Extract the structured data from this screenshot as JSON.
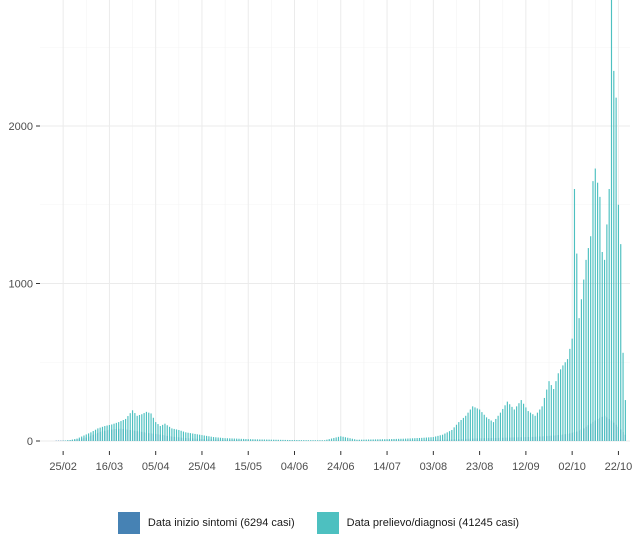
{
  "chart_data": {
    "type": "bar",
    "xlabel": "",
    "ylabel": "",
    "ylim": [
      0,
      2800
    ],
    "y_ticks": [
      0,
      1000,
      2000
    ],
    "x_range": [
      "2020-02-15",
      "2020-10-27"
    ],
    "x_tick_labels": [
      "25/02",
      "16/03",
      "05/04",
      "25/04",
      "15/05",
      "04/06",
      "24/06",
      "14/07",
      "03/08",
      "23/08",
      "12/09",
      "02/10",
      "22/10"
    ],
    "x_tick_dates": [
      "2020-02-25",
      "2020-03-16",
      "2020-04-05",
      "2020-04-25",
      "2020-05-15",
      "2020-06-04",
      "2020-06-24",
      "2020-07-14",
      "2020-08-03",
      "2020-08-23",
      "2020-09-12",
      "2020-10-02",
      "2020-10-22"
    ],
    "grid": true,
    "legend_position": "bottom",
    "series": [
      {
        "name": "Data inizio sintomi (6294 casi)",
        "color": "#4682b4",
        "points": [
          [
            "2020-02-22",
            2
          ],
          [
            "2020-02-26",
            3
          ],
          [
            "2020-02-29",
            6
          ],
          [
            "2020-03-03",
            12
          ],
          [
            "2020-03-06",
            22
          ],
          [
            "2020-03-09",
            40
          ],
          [
            "2020-03-12",
            58
          ],
          [
            "2020-03-15",
            68
          ],
          [
            "2020-03-18",
            75
          ],
          [
            "2020-03-21",
            78
          ],
          [
            "2020-03-24",
            72
          ],
          [
            "2020-03-27",
            65
          ],
          [
            "2020-03-30",
            58
          ],
          [
            "2020-04-02",
            50
          ],
          [
            "2020-04-05",
            45
          ],
          [
            "2020-04-08",
            38
          ],
          [
            "2020-04-11",
            30
          ],
          [
            "2020-04-14",
            25
          ],
          [
            "2020-04-17",
            20
          ],
          [
            "2020-04-20",
            17
          ],
          [
            "2020-04-23",
            14
          ],
          [
            "2020-04-26",
            12
          ],
          [
            "2020-04-29",
            10
          ],
          [
            "2020-05-03",
            8
          ],
          [
            "2020-05-08",
            7
          ],
          [
            "2020-05-13",
            5
          ],
          [
            "2020-05-20",
            4
          ],
          [
            "2020-05-28",
            3
          ],
          [
            "2020-06-05",
            3
          ],
          [
            "2020-06-15",
            2
          ],
          [
            "2020-06-25",
            2
          ],
          [
            "2020-07-05",
            3
          ],
          [
            "2020-07-15",
            4
          ],
          [
            "2020-07-25",
            5
          ],
          [
            "2020-08-01",
            6
          ],
          [
            "2020-08-06",
            8
          ],
          [
            "2020-08-11",
            10
          ],
          [
            "2020-08-16",
            13
          ],
          [
            "2020-08-21",
            16
          ],
          [
            "2020-08-26",
            18
          ],
          [
            "2020-08-31",
            20
          ],
          [
            "2020-09-05",
            22
          ],
          [
            "2020-09-10",
            24
          ],
          [
            "2020-09-15",
            26
          ],
          [
            "2020-09-20",
            30
          ],
          [
            "2020-09-25",
            36
          ],
          [
            "2020-09-30",
            45
          ],
          [
            "2020-10-04",
            60
          ],
          [
            "2020-10-07",
            80
          ],
          [
            "2020-10-10",
            110
          ],
          [
            "2020-10-13",
            140
          ],
          [
            "2020-10-16",
            160
          ],
          [
            "2020-10-19",
            130
          ],
          [
            "2020-10-22",
            90
          ],
          [
            "2020-10-25",
            40
          ]
        ]
      },
      {
        "name": "Data prelievo/diagnosi (41245 casi)",
        "color": "#4dc0c0",
        "points": [
          [
            "2020-02-25",
            2
          ],
          [
            "2020-02-28",
            6
          ],
          [
            "2020-03-02",
            15
          ],
          [
            "2020-03-05",
            35
          ],
          [
            "2020-03-08",
            55
          ],
          [
            "2020-03-11",
            80
          ],
          [
            "2020-03-14",
            95
          ],
          [
            "2020-03-17",
            105
          ],
          [
            "2020-03-20",
            120
          ],
          [
            "2020-03-23",
            140
          ],
          [
            "2020-03-26",
            195
          ],
          [
            "2020-03-28",
            160
          ],
          [
            "2020-03-30",
            170
          ],
          [
            "2020-04-01",
            185
          ],
          [
            "2020-04-03",
            175
          ],
          [
            "2020-04-05",
            120
          ],
          [
            "2020-04-07",
            95
          ],
          [
            "2020-04-09",
            110
          ],
          [
            "2020-04-12",
            80
          ],
          [
            "2020-04-15",
            70
          ],
          [
            "2020-04-18",
            55
          ],
          [
            "2020-04-22",
            45
          ],
          [
            "2020-04-26",
            35
          ],
          [
            "2020-04-30",
            25
          ],
          [
            "2020-05-05",
            18
          ],
          [
            "2020-05-10",
            15
          ],
          [
            "2020-05-15",
            12
          ],
          [
            "2020-05-20",
            10
          ],
          [
            "2020-05-27",
            8
          ],
          [
            "2020-06-03",
            6
          ],
          [
            "2020-06-10",
            5
          ],
          [
            "2020-06-17",
            5
          ],
          [
            "2020-06-24",
            30
          ],
          [
            "2020-07-01",
            8
          ],
          [
            "2020-07-08",
            10
          ],
          [
            "2020-07-15",
            12
          ],
          [
            "2020-07-22",
            15
          ],
          [
            "2020-07-29",
            20
          ],
          [
            "2020-08-03",
            25
          ],
          [
            "2020-08-07",
            40
          ],
          [
            "2020-08-11",
            70
          ],
          [
            "2020-08-14",
            120
          ],
          [
            "2020-08-17",
            160
          ],
          [
            "2020-08-20",
            220
          ],
          [
            "2020-08-23",
            200
          ],
          [
            "2020-08-26",
            150
          ],
          [
            "2020-08-29",
            120
          ],
          [
            "2020-09-01",
            180
          ],
          [
            "2020-09-04",
            250
          ],
          [
            "2020-09-07",
            200
          ],
          [
            "2020-09-10",
            260
          ],
          [
            "2020-09-13",
            190
          ],
          [
            "2020-09-16",
            160
          ],
          [
            "2020-09-19",
            220
          ],
          [
            "2020-09-22",
            380
          ],
          [
            "2020-09-24",
            330
          ],
          [
            "2020-09-26",
            430
          ],
          [
            "2020-09-28",
            480
          ],
          [
            "2020-09-30",
            520
          ],
          [
            "2020-10-02",
            650
          ],
          [
            "2020-10-03",
            1600
          ],
          [
            "2020-10-05",
            780
          ],
          [
            "2020-10-06",
            900
          ],
          [
            "2020-10-08",
            1150
          ],
          [
            "2020-10-10",
            1300
          ],
          [
            "2020-10-11",
            1650
          ],
          [
            "2020-10-12",
            1730
          ],
          [
            "2020-10-14",
            1550
          ],
          [
            "2020-10-15",
            1200
          ],
          [
            "2020-10-16",
            1150
          ],
          [
            "2020-10-18",
            1600
          ],
          [
            "2020-10-19",
            2800
          ],
          [
            "2020-10-20",
            2350
          ],
          [
            "2020-10-21",
            2180
          ],
          [
            "2020-10-22",
            1500
          ],
          [
            "2020-10-23",
            1250
          ],
          [
            "2020-10-24",
            560
          ],
          [
            "2020-10-25",
            260
          ]
        ]
      }
    ]
  }
}
